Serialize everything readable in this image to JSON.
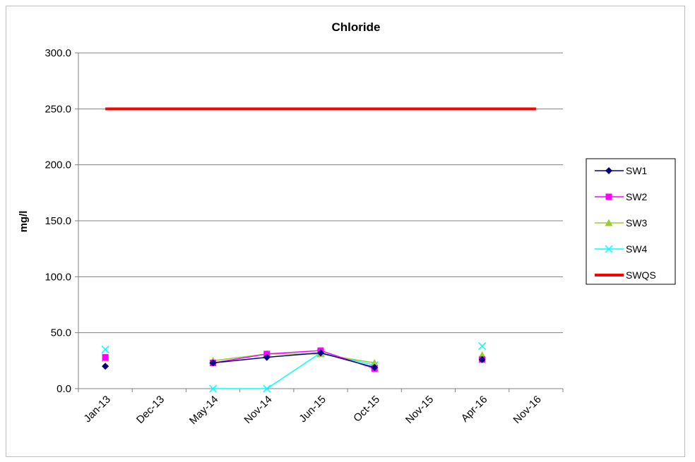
{
  "chart_data": {
    "type": "line",
    "title": "Chloride",
    "xlabel": "",
    "ylabel": "mg/l",
    "ylim": [
      0,
      300
    ],
    "y_ticks": [
      "0.0",
      "50.0",
      "100.0",
      "150.0",
      "200.0",
      "250.0",
      "300.0"
    ],
    "categories": [
      "Jan-13",
      "Dec-13",
      "May-14",
      "Nov-14",
      "Jun-15",
      "Oct-15",
      "Nov-15",
      "Apr-16",
      "Nov-16"
    ],
    "grid": true,
    "legend_position": "right",
    "series": [
      {
        "name": "SW1",
        "color": "#000080",
        "marker": "diamond",
        "values": [
          20,
          null,
          23,
          28,
          32,
          19,
          null,
          26,
          null
        ]
      },
      {
        "name": "SW2",
        "color": "#ff00ff",
        "marker": "square",
        "values": [
          28,
          null,
          23,
          31,
          34,
          18,
          null,
          26,
          null
        ]
      },
      {
        "name": "SW3",
        "color": "#9acd32",
        "marker": "triangle",
        "values": [
          27,
          null,
          25,
          31,
          31,
          23,
          null,
          30,
          null
        ]
      },
      {
        "name": "SW4",
        "color": "#00ffff",
        "marker": "x",
        "values": [
          35,
          null,
          0,
          0,
          32,
          21,
          null,
          38,
          null
        ]
      },
      {
        "name": "SWQS",
        "color": "#ff0000",
        "marker": "none",
        "values": [
          250,
          250,
          250,
          250,
          250,
          250,
          250,
          250,
          250
        ]
      }
    ]
  }
}
